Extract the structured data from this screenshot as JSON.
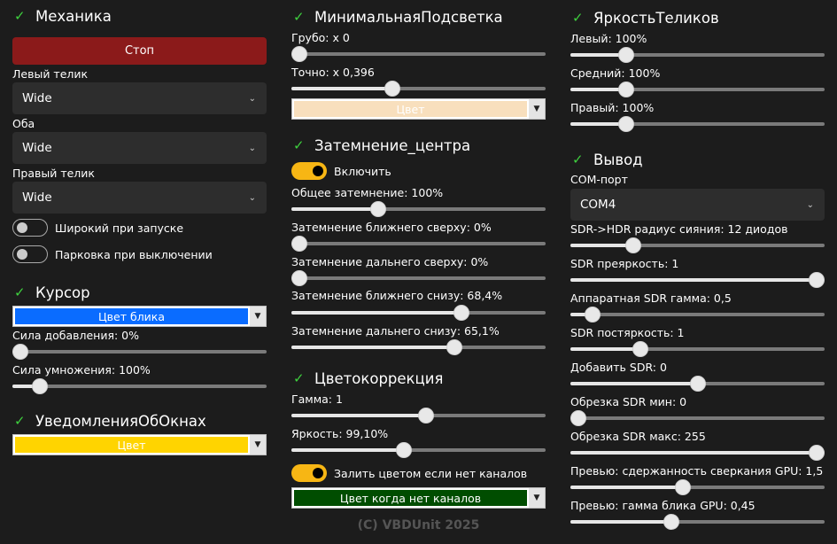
{
  "colors": {
    "check": "#3ecf3e",
    "stop": "#8b1a1a",
    "toggle_on": "#f7b614"
  },
  "columns": [
    [
      {
        "t": "head",
        "text": "Механика"
      },
      {
        "t": "btn",
        "text": "Стоп",
        "bg": "#8b1a1a"
      },
      {
        "t": "lbl",
        "text": "Левый телик"
      },
      {
        "t": "dd",
        "text": "Wide"
      },
      {
        "t": "lbl",
        "text": "Оба"
      },
      {
        "t": "dd",
        "text": "Wide"
      },
      {
        "t": "lbl",
        "text": "Правый телик"
      },
      {
        "t": "dd",
        "text": "Wide"
      },
      {
        "t": "tog",
        "text": "Широкий при запуске",
        "on": false
      },
      {
        "t": "tog",
        "text": "Парковка при выключении",
        "on": false
      },
      {
        "t": "head",
        "text": "Курсор"
      },
      {
        "t": "color",
        "text": "Цвет блика",
        "bg": "#0a6cff",
        "fg": "#ffffff"
      },
      {
        "t": "lbl",
        "text": "Сила добавления: 0%"
      },
      {
        "t": "slider",
        "level": 0
      },
      {
        "t": "lbl",
        "text": "Сила умножения: 100%"
      },
      {
        "t": "slider",
        "level": 0.08
      },
      {
        "t": "head",
        "text": "УведомленияОбОкнах"
      },
      {
        "t": "color",
        "text": "Цвет",
        "bg": "#ffd400",
        "fg": "#ffffff"
      }
    ],
    [
      {
        "t": "head",
        "text": "МинимальнаяПодсветка"
      },
      {
        "t": "lbl",
        "text": "Грубо: x 0"
      },
      {
        "t": "slider",
        "level": 0
      },
      {
        "t": "lbl",
        "text": "Точно: x 0,396"
      },
      {
        "t": "slider",
        "level": 0.39
      },
      {
        "t": "color",
        "text": "Цвет",
        "bg": "#f8dfbd",
        "fg": "#ffffff"
      },
      {
        "t": "head",
        "text": "Затемнение_центра"
      },
      {
        "t": "tog",
        "text": "Включить",
        "on": true
      },
      {
        "t": "lbl",
        "text": "Общее затемнение: 100%"
      },
      {
        "t": "slider",
        "level": 0.33
      },
      {
        "t": "lbl",
        "text": "Затемнение ближнего сверху: 0%"
      },
      {
        "t": "slider",
        "level": 0
      },
      {
        "t": "lbl",
        "text": "Затемнение дальнего сверху: 0%"
      },
      {
        "t": "slider",
        "level": 0
      },
      {
        "t": "lbl",
        "text": "Затемнение ближнего снизу: 68,4%"
      },
      {
        "t": "slider",
        "level": 0.68
      },
      {
        "t": "lbl",
        "text": "Затемнение дальнего снизу: 65,1%"
      },
      {
        "t": "slider",
        "level": 0.65
      },
      {
        "t": "head",
        "text": "Цветокоррекция"
      },
      {
        "t": "lbl",
        "text": "Гамма: 1"
      },
      {
        "t": "slider",
        "level": 0.53
      },
      {
        "t": "lbl",
        "text": "Яркость: 99,10%"
      },
      {
        "t": "slider",
        "level": 0.44
      },
      {
        "t": "tog",
        "text": "Залить цветом если нет каналов",
        "on": true
      },
      {
        "t": "color",
        "text": "Цвет когда нет каналов",
        "bg": "#004d00",
        "fg": "#ffffff"
      },
      {
        "t": "footer",
        "text": "(C) VBDUnit 2025"
      }
    ],
    [
      {
        "t": "head",
        "text": "ЯркостьТеликов"
      },
      {
        "t": "lbl",
        "text": "Левый: 100%"
      },
      {
        "t": "slider",
        "level": 0.2
      },
      {
        "t": "lbl",
        "text": "Средний: 100%"
      },
      {
        "t": "slider",
        "level": 0.2
      },
      {
        "t": "lbl",
        "text": "Правый: 100%"
      },
      {
        "t": "slider",
        "level": 0.2
      },
      {
        "t": "head",
        "text": "Вывод"
      },
      {
        "t": "lbl",
        "text": "COM-порт"
      },
      {
        "t": "dd",
        "text": "COM4"
      },
      {
        "t": "lbl",
        "text": "SDR->HDR радиус сияния: 12 диодов"
      },
      {
        "t": "slider",
        "level": 0.23
      },
      {
        "t": "lbl",
        "text": "SDR преяркость: 1"
      },
      {
        "t": "slider",
        "level": 1
      },
      {
        "t": "lbl",
        "text": "Аппаратная SDR гамма: 0,5"
      },
      {
        "t": "slider",
        "level": 0.06
      },
      {
        "t": "lbl",
        "text": "SDR постяркость: 1"
      },
      {
        "t": "slider",
        "level": 0.26
      },
      {
        "t": "lbl",
        "text": "Добавить SDR: 0"
      },
      {
        "t": "slider",
        "level": 0.5
      },
      {
        "t": "lbl",
        "text": "Обрезка SDR мин: 0"
      },
      {
        "t": "slider",
        "level": 0
      },
      {
        "t": "lbl",
        "text": "Обрезка SDR макс: 255"
      },
      {
        "t": "slider",
        "level": 1
      },
      {
        "t": "lbl",
        "text": "Превью: сдержанность сверкания GPU: 1,5"
      },
      {
        "t": "slider",
        "level": 0.44
      },
      {
        "t": "lbl",
        "text": "Превью: гамма блика GPU: 0,45"
      },
      {
        "t": "slider",
        "level": 0.39
      }
    ]
  ]
}
